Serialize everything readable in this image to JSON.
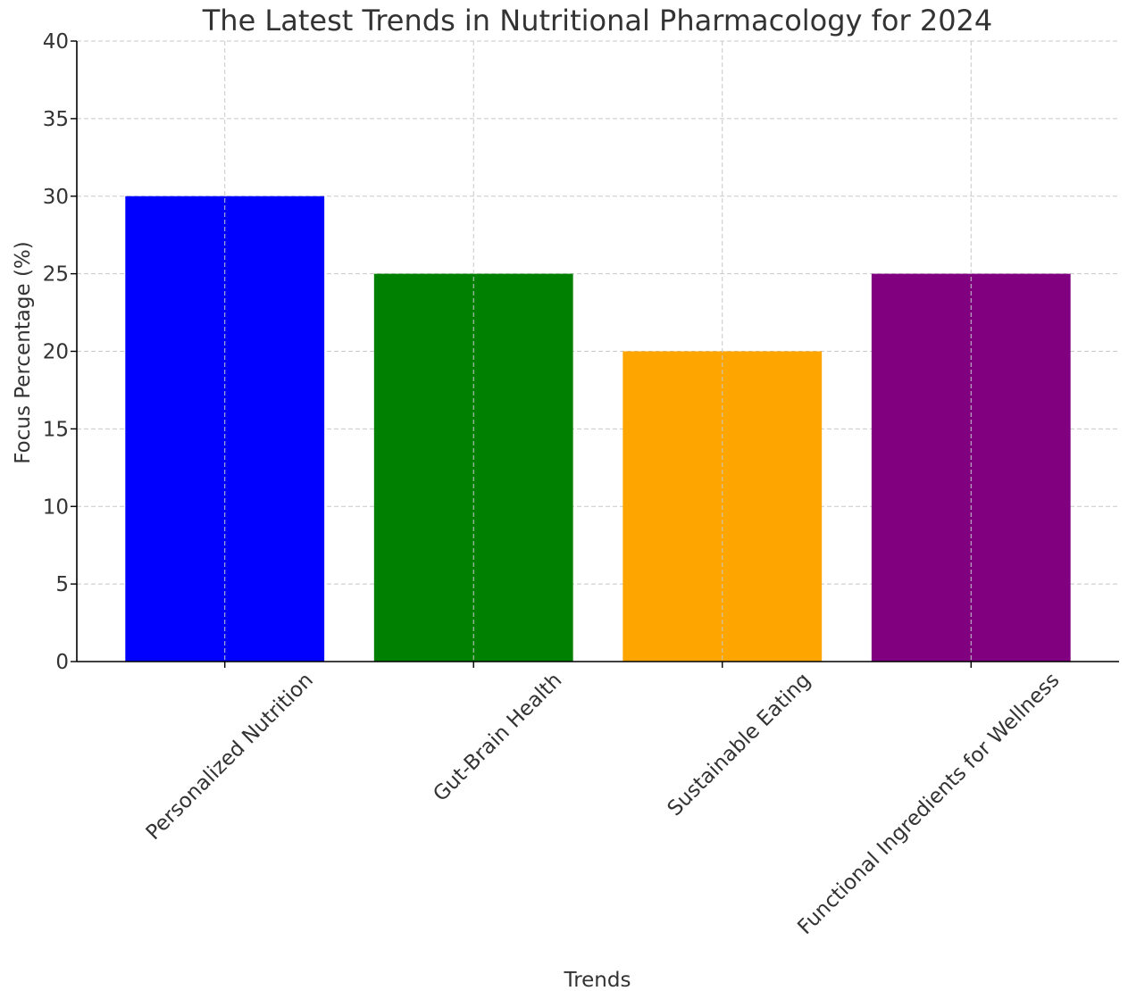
{
  "chart_data": {
    "type": "bar",
    "title": "The Latest Trends in Nutritional Pharmacology for 2024",
    "xlabel": "Trends",
    "ylabel": "Focus Percentage (%)",
    "categories": [
      "Personalized Nutrition",
      "Gut-Brain Health",
      "Sustainable Eating",
      "Functional Ingredients for Wellness"
    ],
    "values": [
      30,
      25,
      20,
      25
    ],
    "colors": [
      "#0000ff",
      "#008000",
      "#ffa500",
      "#800080"
    ],
    "ylim": [
      0,
      40
    ],
    "yticks": [
      0,
      5,
      10,
      15,
      20,
      25,
      30,
      35,
      40
    ],
    "grid": true,
    "xtick_rotation": -45
  }
}
